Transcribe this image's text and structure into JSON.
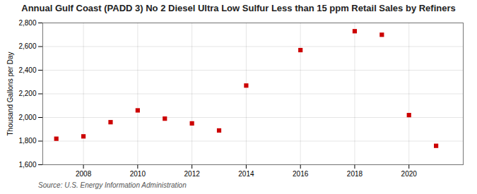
{
  "chart_data": {
    "type": "scatter",
    "title": "Annual Gulf Coast (PADD 3) No 2 Diesel Ultra Low Sulfur Less than 15 ppm Retail Sales by Refiners",
    "ylabel": "Thousand Gallons per Day",
    "annotations": [
      "Source: U.S. Energy Information Administration"
    ],
    "x": [
      2007,
      2008,
      2009,
      2010,
      2011,
      2012,
      2013,
      2014,
      2016,
      2018,
      2019,
      2020,
      2021
    ],
    "values": [
      1820,
      1840,
      1960,
      2060,
      1990,
      1950,
      1890,
      2270,
      2570,
      2730,
      2700,
      2020,
      1760
    ],
    "color": "#cc0000",
    "marker": "square",
    "xlim": [
      2006.5,
      2022.0
    ],
    "xticks": [
      2008,
      2010,
      2012,
      2014,
      2016,
      2018,
      2020
    ],
    "ylim": [
      1600,
      2800
    ],
    "yticks": [
      {
        "value": 1600,
        "label": "1,600"
      },
      {
        "value": 1800,
        "label": "1,800"
      },
      {
        "value": 2000,
        "label": "2,000"
      },
      {
        "value": 2200,
        "label": "2,200"
      },
      {
        "value": 2400,
        "label": "2,400"
      },
      {
        "value": 2600,
        "label": "2,600"
      },
      {
        "value": 2800,
        "label": "2,800"
      }
    ],
    "grid": true
  }
}
